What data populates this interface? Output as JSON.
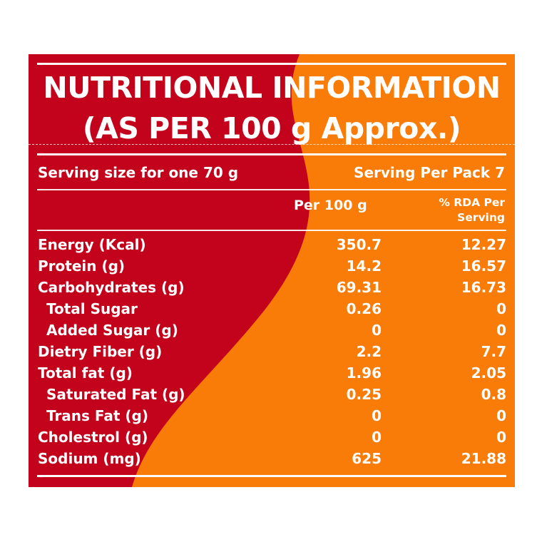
{
  "title_line1": "NUTRITIONAL INFORMATION",
  "title_line2": "(AS PER 100 g Approx.)",
  "serving_size": "Serving size for one 70 g",
  "serving_per_pack": "Serving Per Pack 7",
  "columns": {
    "per100": "Per 100 g",
    "rda_line1": "% RDA Per",
    "rda_line2": "Serving"
  },
  "rows": [
    {
      "label": "Energy (Kcal)",
      "per100": "350.7",
      "rda": "12.27"
    },
    {
      "label": "Protein (g)",
      "per100": "14.2",
      "rda": "16.57"
    },
    {
      "label": "Carbohydrates (g)",
      "per100": "69.31",
      "rda": "16.73"
    },
    {
      "label": "Total Sugar",
      "per100": "0.26",
      "rda": "0"
    },
    {
      "label": "Added Sugar (g)",
      "per100": "0",
      "rda": "0"
    },
    {
      "label": "Dietry Fiber (g)",
      "per100": "2.2",
      "rda": "7.7"
    },
    {
      "label": "Total fat (g)",
      "per100": "1.96",
      "rda": "2.05"
    },
    {
      "label": "Saturated Fat (g)",
      "per100": "0.25",
      "rda": "0.8"
    },
    {
      "label": "Trans Fat (g)",
      "per100": "0",
      "rda": "0"
    },
    {
      "label": "Cholestrol (g)",
      "per100": "0",
      "rda": "0"
    },
    {
      "label": "Sodium (mg)",
      "per100": "625",
      "rda": "21.88"
    }
  ],
  "colors": {
    "red": "#c3021b",
    "orange": "#f97c09",
    "text": "#ffffff"
  }
}
